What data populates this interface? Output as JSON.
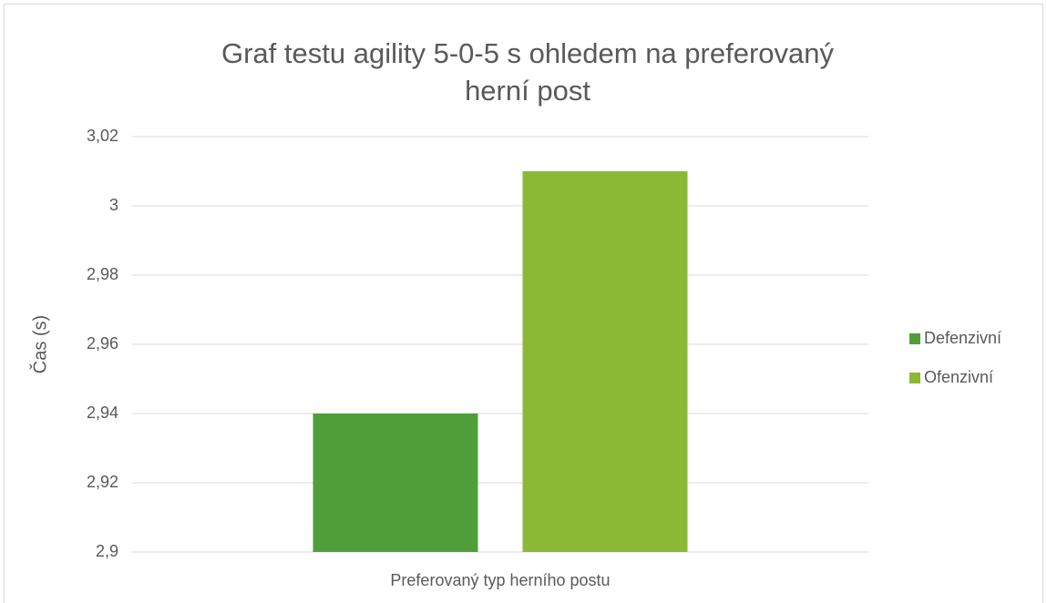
{
  "chart_data": {
    "type": "bar",
    "title": "Graf testu agility 5-0-5 s ohledem na preferovaný herní post",
    "y_label": "Čas (s)",
    "x_label": "Preferovaný typ herního postu",
    "categories": [
      "Preferovaný typ herního postu"
    ],
    "series": [
      {
        "name": "Defenzivní",
        "color": "#509e39",
        "values": [
          2.94
        ]
      },
      {
        "name": "Ofenzivní",
        "color": "#8cb935",
        "values": [
          3.01
        ]
      }
    ],
    "ylim": [
      2.9,
      3.02
    ],
    "yticks": [
      {
        "value": 2.9,
        "label": "2,9"
      },
      {
        "value": 2.92,
        "label": "2,92"
      },
      {
        "value": 2.94,
        "label": "2,94"
      },
      {
        "value": 2.96,
        "label": "2,96"
      },
      {
        "value": 2.98,
        "label": "2,98"
      },
      3,
      {
        "value": 3.02,
        "label": "3,02"
      }
    ],
    "grid": true,
    "legend": "right"
  }
}
